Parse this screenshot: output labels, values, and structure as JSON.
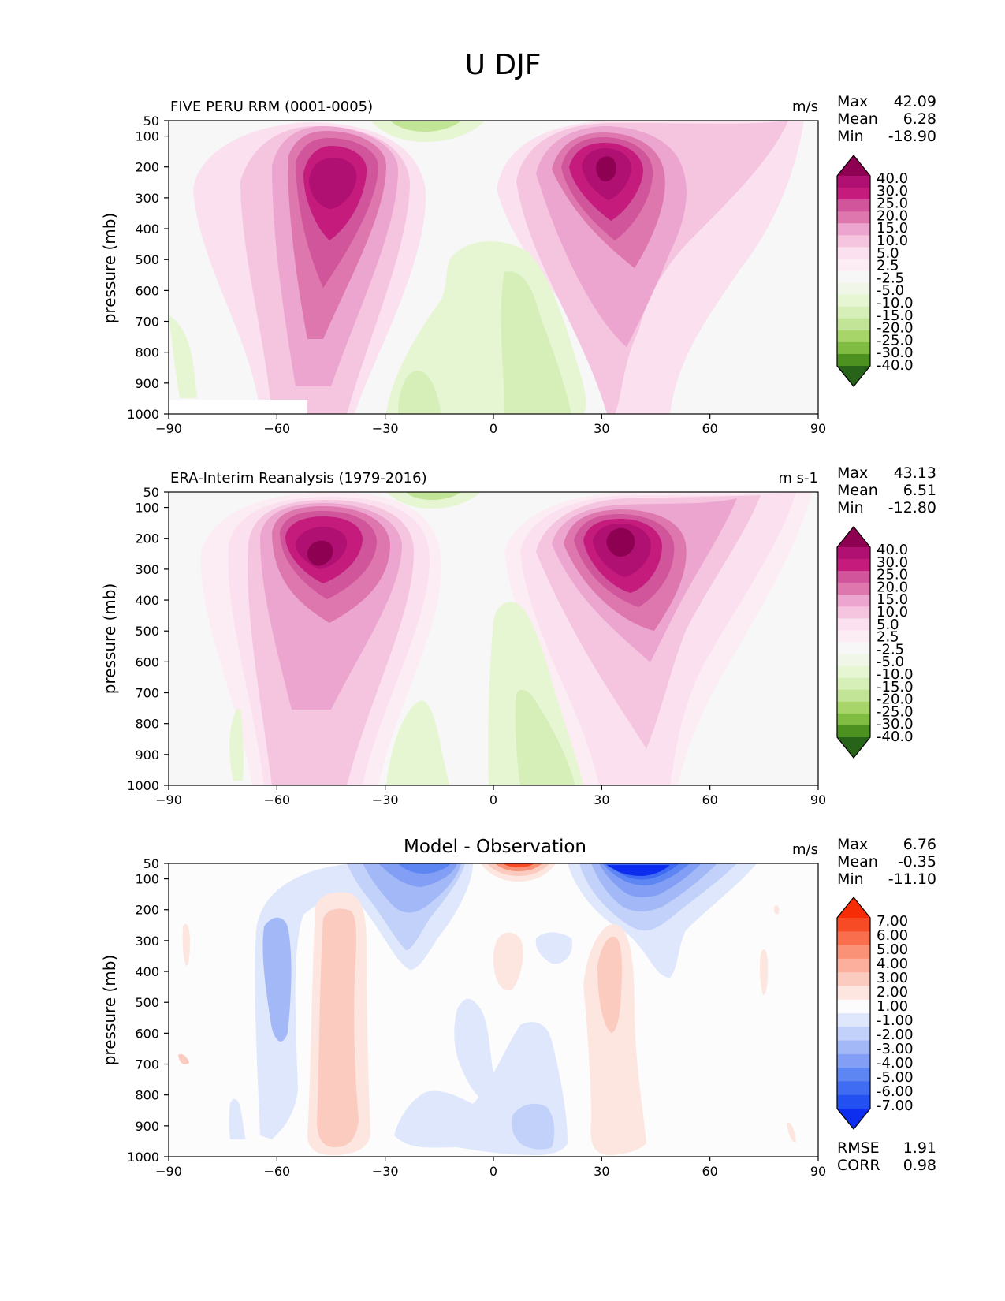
{
  "title": "U DJF",
  "colors": {
    "ratio_cbar": [
      "#276419",
      "#4d9221",
      "#7fbc41",
      "#a8d56a",
      "#c2e497",
      "#d6efb9",
      "#e6f5d2",
      "#f0f6e8",
      "#f7f7f7",
      "#fcecf4",
      "#fbe0ef",
      "#f5c5e0",
      "#eba5cf",
      "#de77ae",
      "#d0559b",
      "#c51b7d",
      "#b01072",
      "#8e0152"
    ],
    "diff_cbar": [
      "#0d2eef",
      "#2351f1",
      "#3f6cf2",
      "#5e86f3",
      "#829ff5",
      "#a3b8f6",
      "#c2d1f9",
      "#dfe7fc",
      "#fcfcfc",
      "#fde6e0",
      "#fccbbf",
      "#fbaf9c",
      "#fa9277",
      "#f96f4d",
      "#f74b25",
      "#f52c06"
    ],
    "line": "#000000"
  },
  "chart_data": [
    {
      "type": "heatmap",
      "subtitle": "FIVE PERU RRM (0001-0005)",
      "units": "m/s",
      "ylabel": "pressure (mb)",
      "xlim": [
        -90,
        90
      ],
      "xticks": [
        "−90",
        "−60",
        "−30",
        "0",
        "30",
        "60",
        "90"
      ],
      "yticks": [
        "50",
        "100",
        "200",
        "300",
        "400",
        "500",
        "600",
        "700",
        "800",
        "900",
        "1000"
      ],
      "ylim": [
        50,
        1000
      ],
      "stats": {
        "Max": "42.09",
        "Mean": "6.28",
        "Min": "-18.90"
      },
      "colorbar_labels": [
        "40.0",
        "30.0",
        "25.0",
        "20.0",
        "15.0",
        "10.0",
        "5.0",
        "2.5",
        "-2.5",
        "-5.0",
        "-10.0",
        "-15.0",
        "-20.0",
        "-25.0",
        "-30.0",
        "-40.0"
      ],
      "jets": [
        {
          "lat": -47,
          "p": 260,
          "peak": 33
        },
        {
          "lat": 30,
          "p": 220,
          "peak": 42
        }
      ],
      "easterlies": [
        {
          "lat": 10,
          "p": 800,
          "min": -10
        },
        {
          "lat": -20,
          "p": 900,
          "min": -8
        },
        {
          "lat": -10,
          "p": 60,
          "min": -12
        }
      ]
    },
    {
      "type": "heatmap",
      "subtitle": "ERA-Interim Reanalysis (1979-2016)",
      "units": "m s-1",
      "ylabel": "pressure (mb)",
      "xlim": [
        -90,
        90
      ],
      "xticks": [
        "−90",
        "−60",
        "−30",
        "0",
        "30",
        "60",
        "90"
      ],
      "yticks": [
        "50",
        "100",
        "200",
        "300",
        "400",
        "500",
        "600",
        "700",
        "800",
        "900",
        "1000"
      ],
      "ylim": [
        50,
        1000
      ],
      "stats": {
        "Max": "43.13",
        "Mean": "6.51",
        "Min": "-12.80"
      },
      "colorbar_labels": [
        "40.0",
        "30.0",
        "25.0",
        "20.0",
        "15.0",
        "10.0",
        "5.0",
        "2.5",
        "-2.5",
        "-5.0",
        "-10.0",
        "-15.0",
        "-20.0",
        "-25.0",
        "-30.0",
        "-40.0"
      ],
      "jets": [
        {
          "lat": -48,
          "p": 250,
          "peak": 36
        },
        {
          "lat": 31,
          "p": 210,
          "peak": 43
        }
      ],
      "easterlies": [
        {
          "lat": 10,
          "p": 850,
          "min": -9
        },
        {
          "lat": -20,
          "p": 900,
          "min": -6
        },
        {
          "lat": -10,
          "p": 60,
          "min": -10
        }
      ]
    },
    {
      "type": "heatmap",
      "subtitle": "Model - Observation",
      "units": "m/s",
      "ylabel": "pressure (mb)",
      "xlim": [
        -90,
        90
      ],
      "xticks": [
        "−90",
        "−60",
        "−30",
        "0",
        "30",
        "60",
        "90"
      ],
      "yticks": [
        "50",
        "100",
        "200",
        "300",
        "400",
        "500",
        "600",
        "700",
        "800",
        "900",
        "1000"
      ],
      "ylim": [
        50,
        1000
      ],
      "stats": {
        "Max": "6.76",
        "Mean": "-0.35",
        "Min": "-11.10"
      },
      "colorbar_labels": [
        "7.00",
        "6.00",
        "5.00",
        "4.00",
        "3.00",
        "2.00",
        "1.00",
        "-1.00",
        "-2.00",
        "-3.00",
        "-4.00",
        "-5.00",
        "-6.00",
        "-7.00"
      ],
      "extra_stats": {
        "RMSE": "1.91",
        "CORR": "0.98"
      }
    }
  ]
}
